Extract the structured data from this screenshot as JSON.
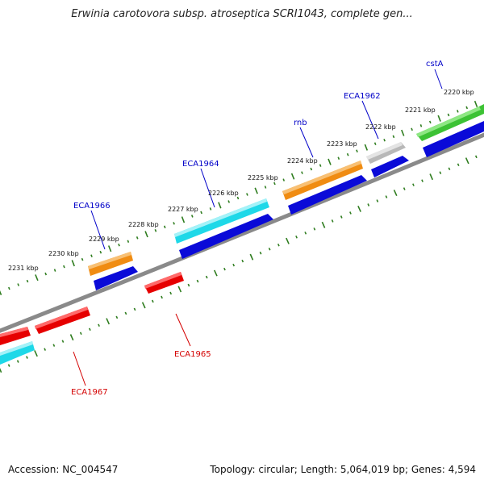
{
  "title": "Erwinia carotovora subsp. atroseptica SCRI1043, complete gen...",
  "footer": {
    "accession": "Accession: NC_004547",
    "topology": "Topology: circular; Length: 5,064,019 bp; Genes: 4,594"
  },
  "colors": {
    "backbone": "#8a8a8a",
    "tick": "#2f7d1f",
    "forward_label": "#0000c8",
    "reverse_label": "#d40000",
    "blue_feature": "#0a0ad8",
    "red_feature": "#e60000",
    "cyan_feature": "#1ed8e8",
    "orange_feature": "#f08c12",
    "green_feature": "#3cc234",
    "grey_feature": "#b8b8b8"
  },
  "kbp_labels": [
    "2220 kbp",
    "2221 kbp",
    "2222 kbp",
    "2223 kbp",
    "2224 kbp",
    "2225 kbp",
    "2226 kbp",
    "2227 kbp",
    "2228 kbp",
    "2229 kbp",
    "2230 kbp",
    "2231 kbp"
  ],
  "genes_forward": [
    "cstA",
    "ECA1962",
    "rnb",
    "ECA1964",
    "ECA1966"
  ],
  "genes_reverse": [
    "ECA1965",
    "ECA1967"
  ]
}
